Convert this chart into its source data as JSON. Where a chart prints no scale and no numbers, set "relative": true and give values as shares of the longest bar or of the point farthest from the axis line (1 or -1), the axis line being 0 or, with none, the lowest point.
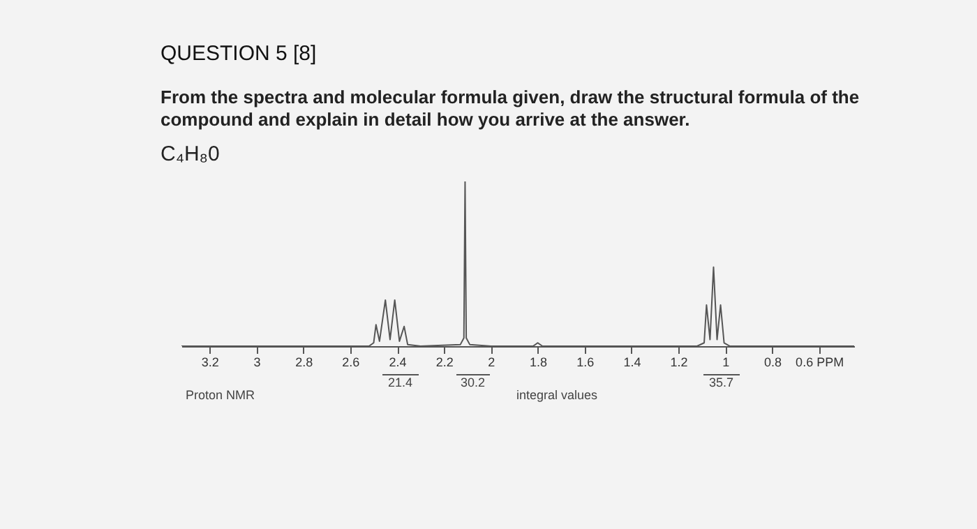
{
  "chart_data": {
    "type": "line",
    "title": "QUESTION 5 [8]",
    "subtitle": "From the spectra and molecular formula given, draw the structural formula of the compound and explain in detail how you arrive at the answer.",
    "relative": true,
    "x": [
      3.32,
      2.52,
      2.5,
      2.49,
      2.475,
      2.45,
      2.43,
      2.41,
      2.39,
      2.37,
      2.355,
      2.3,
      2.13,
      2.115,
      2.11,
      2.105,
      2.09,
      2.0,
      1.82,
      1.8,
      1.78,
      1.12,
      1.09,
      1.08,
      1.065,
      1.05,
      1.035,
      1.02,
      1.005,
      0.98,
      0.45
    ],
    "series": [
      {
        "color": "#555555",
        "values": [
          0,
          0,
          0.02,
          0.13,
          0.03,
          0.28,
          0.04,
          0.28,
          0.03,
          0.12,
          0.01,
          0,
          0.01,
          0.05,
          1.0,
          0.05,
          0.01,
          0,
          0,
          0.02,
          0,
          0,
          0.02,
          0.25,
          0.04,
          0.48,
          0.04,
          0.25,
          0.02,
          0,
          0
        ]
      }
    ],
    "xlim": [
      3.32,
      0.45
    ],
    "xticks": [
      3.2,
      3.0,
      2.8,
      2.6,
      2.4,
      2.2,
      2.0,
      1.8,
      1.6,
      1.4,
      1.2,
      1.0,
      0.8,
      {
        "value": 0.6,
        "label": "0.6 PPM"
      }
    ],
    "grid": false,
    "annotations": [
      "C₄H₈0",
      "Proton NMR",
      "integral values",
      "21.4",
      "30.2",
      "35.7"
    ]
  }
}
